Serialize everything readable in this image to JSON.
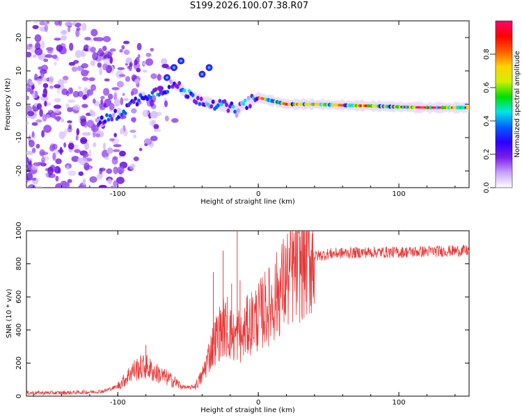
{
  "page": {
    "title": "S199.2026.100.07.38.R07"
  },
  "chart_data": [
    {
      "type": "heatmap",
      "title": "",
      "xlabel": "Height of straight line (km)",
      "ylabel": "Frequency (Hz)",
      "xlim": [
        -165,
        150
      ],
      "ylim": [
        -25,
        25
      ],
      "xticks": [
        -100,
        0,
        100
      ],
      "yticks": [
        -20,
        -10,
        0,
        10,
        20
      ],
      "xtick_labels": [
        "-100",
        "0",
        "100"
      ],
      "ytick_labels": [
        "-20",
        "-10",
        "0",
        "10",
        "20"
      ],
      "colorbar": {
        "label": "Normalized spectral amplitude",
        "range": [
          0,
          1
        ],
        "ticks": [
          0.0,
          0.2,
          0.4,
          0.6,
          0.8
        ],
        "tick_labels": [
          "0.0",
          "0.2",
          "0.4",
          "0.6",
          "0.8"
        ],
        "colors": [
          "#ffffff",
          "#c8a0ff",
          "#7a1fe6",
          "#2b00ff",
          "#0060ff",
          "#00e6e6",
          "#00e000",
          "#d2f000",
          "#ffd200",
          "#ff5a00",
          "#ff0000",
          "#ff0070"
        ]
      },
      "ridge": {
        "description": "main spectral ridge frequency vs height",
        "x": [
          -110,
          -100,
          -90,
          -80,
          -70,
          -60,
          -50,
          -40,
          -30,
          -20,
          -15,
          -10,
          0,
          10,
          20,
          40,
          60,
          80,
          100,
          120,
          150
        ],
        "y": [
          -5,
          -3,
          0,
          3,
          4,
          6,
          3,
          1,
          0,
          -1,
          -2,
          0,
          2,
          1,
          0,
          0,
          -0.3,
          -0.5,
          -0.8,
          -1,
          -1
        ]
      }
    },
    {
      "type": "line",
      "title": "",
      "xlabel": "Height of straight line (km)",
      "ylabel": "SNR (10 * v/v)",
      "xlim": [
        -165,
        150
      ],
      "ylim": [
        0,
        1000
      ],
      "xticks": [
        -100,
        0,
        100
      ],
      "yticks": [
        0,
        200,
        400,
        600,
        800,
        1000
      ],
      "xtick_labels": [
        "-100",
        "0",
        "100"
      ],
      "ytick_labels": [
        "0",
        "200",
        "400",
        "600",
        "800",
        "1000"
      ],
      "color": "#e83a3a",
      "series": [
        {
          "name": "SNR",
          "x": [
            -165,
            -140,
            -120,
            -110,
            -100,
            -95,
            -90,
            -85,
            -80,
            -75,
            -70,
            -65,
            -60,
            -55,
            -50,
            -45,
            -40,
            -35,
            -30,
            -25,
            -20,
            -17,
            -14,
            -12,
            -10,
            -8,
            -5,
            0,
            5,
            10,
            15,
            20,
            25,
            30,
            35,
            40,
            50,
            60,
            80,
            100,
            120,
            150
          ],
          "y": [
            20,
            20,
            25,
            30,
            60,
            100,
            150,
            170,
            180,
            150,
            130,
            110,
            90,
            60,
            50,
            60,
            120,
            250,
            350,
            420,
            380,
            350,
            380,
            340,
            380,
            420,
            450,
            480,
            530,
            560,
            640,
            700,
            760,
            800,
            830,
            845,
            860,
            865,
            870,
            870,
            875,
            880
          ]
        }
      ],
      "spikes": {
        "x": [
          -80,
          -32,
          -25,
          -22,
          -19,
          -15,
          -13
        ],
        "y": [
          310,
          750,
          880,
          600,
          680,
          1000,
          700
        ]
      }
    }
  ]
}
